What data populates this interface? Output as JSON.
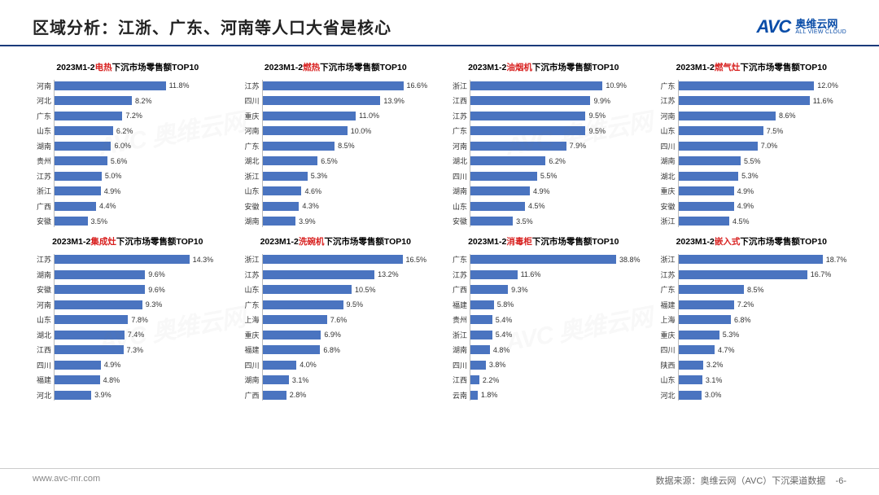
{
  "page_title": "区域分析：江浙、广东、河南等人口大省是核心",
  "logo": {
    "mark": "AVC",
    "cn": "奥维云网",
    "en": "ALL VIEW CLOUD"
  },
  "footer_url": "www.avc-mr.com",
  "footer_source": "数据来源：奥维云网（AVC）下沉渠道数据",
  "footer_page": "-6-",
  "bar_color": "#4a74c0",
  "title_highlight_color": "#d8201f",
  "title_prefix": "2023M1-2",
  "title_suffix": "下沉市场零售额TOP10",
  "charts": [
    {
      "highlight": "电热",
      "max": 18,
      "data": [
        {
          "label": "河南",
          "value": 11.8
        },
        {
          "label": "河北",
          "value": 8.2
        },
        {
          "label": "广东",
          "value": 7.2
        },
        {
          "label": "山东",
          "value": 6.2
        },
        {
          "label": "湖南",
          "value": 6.0
        },
        {
          "label": "贵州",
          "value": 5.6
        },
        {
          "label": "江苏",
          "value": 5.0
        },
        {
          "label": "浙江",
          "value": 4.9
        },
        {
          "label": "广西",
          "value": 4.4
        },
        {
          "label": "安徽",
          "value": 3.5
        }
      ]
    },
    {
      "highlight": "燃热",
      "max": 20,
      "data": [
        {
          "label": "江苏",
          "value": 16.6
        },
        {
          "label": "四川",
          "value": 13.9
        },
        {
          "label": "重庆",
          "value": 11.0
        },
        {
          "label": "河南",
          "value": 10.0
        },
        {
          "label": "广东",
          "value": 8.5
        },
        {
          "label": "湖北",
          "value": 6.5
        },
        {
          "label": "浙江",
          "value": 5.3
        },
        {
          "label": "山东",
          "value": 4.6
        },
        {
          "label": "安徽",
          "value": 4.3
        },
        {
          "label": "湖南",
          "value": 3.9
        }
      ]
    },
    {
      "highlight": "油烟机",
      "max": 14,
      "data": [
        {
          "label": "浙江",
          "value": 10.9
        },
        {
          "label": "江西",
          "value": 9.9
        },
        {
          "label": "江苏",
          "value": 9.5
        },
        {
          "label": "广东",
          "value": 9.5
        },
        {
          "label": "河南",
          "value": 7.9
        },
        {
          "label": "湖北",
          "value": 6.2
        },
        {
          "label": "四川",
          "value": 5.5
        },
        {
          "label": "湖南",
          "value": 4.9
        },
        {
          "label": "山东",
          "value": 4.5
        },
        {
          "label": "安徽",
          "value": 3.5
        }
      ]
    },
    {
      "highlight": "燃气灶",
      "max": 15,
      "data": [
        {
          "label": "广东",
          "value": 12.0
        },
        {
          "label": "江苏",
          "value": 11.6
        },
        {
          "label": "河南",
          "value": 8.6
        },
        {
          "label": "山东",
          "value": 7.5
        },
        {
          "label": "四川",
          "value": 7.0
        },
        {
          "label": "湖南",
          "value": 5.5
        },
        {
          "label": "湖北",
          "value": 5.3
        },
        {
          "label": "重庆",
          "value": 4.9
        },
        {
          "label": "安徽",
          "value": 4.9
        },
        {
          "label": "浙江",
          "value": 4.5
        }
      ]
    },
    {
      "highlight": "集成灶",
      "max": 18,
      "data": [
        {
          "label": "江苏",
          "value": 14.3
        },
        {
          "label": "湖南",
          "value": 9.6
        },
        {
          "label": "安徽",
          "value": 9.6
        },
        {
          "label": "河南",
          "value": 9.3
        },
        {
          "label": "山东",
          "value": 7.8
        },
        {
          "label": "湖北",
          "value": 7.4
        },
        {
          "label": "江西",
          "value": 7.3
        },
        {
          "label": "四川",
          "value": 4.9
        },
        {
          "label": "福建",
          "value": 4.8
        },
        {
          "label": "河北",
          "value": 3.9
        }
      ]
    },
    {
      "highlight": "洗碗机",
      "max": 20,
      "data": [
        {
          "label": "浙江",
          "value": 16.5
        },
        {
          "label": "江苏",
          "value": 13.2
        },
        {
          "label": "山东",
          "value": 10.5
        },
        {
          "label": "广东",
          "value": 9.5
        },
        {
          "label": "上海",
          "value": 7.6
        },
        {
          "label": "重庆",
          "value": 6.9
        },
        {
          "label": "福建",
          "value": 6.8
        },
        {
          "label": "四川",
          "value": 4.0
        },
        {
          "label": "湖南",
          "value": 3.1
        },
        {
          "label": "广西",
          "value": 2.8
        }
      ]
    },
    {
      "highlight": "消毒柜",
      "max": 42,
      "data": [
        {
          "label": "广东",
          "value": 38.8
        },
        {
          "label": "江苏",
          "value": 11.6
        },
        {
          "label": "广西",
          "value": 9.3
        },
        {
          "label": "福建",
          "value": 5.8
        },
        {
          "label": "贵州",
          "value": 5.4
        },
        {
          "label": "浙江",
          "value": 5.4
        },
        {
          "label": "湖南",
          "value": 4.8
        },
        {
          "label": "四川",
          "value": 3.8
        },
        {
          "label": "江西",
          "value": 2.2
        },
        {
          "label": "云南",
          "value": 1.8
        }
      ]
    },
    {
      "highlight": "嵌入式",
      "max": 22,
      "data": [
        {
          "label": "浙江",
          "value": 18.7
        },
        {
          "label": "江苏",
          "value": 16.7
        },
        {
          "label": "广东",
          "value": 8.5
        },
        {
          "label": "福建",
          "value": 7.2
        },
        {
          "label": "上海",
          "value": 6.8
        },
        {
          "label": "重庆",
          "value": 5.3
        },
        {
          "label": "四川",
          "value": 4.7
        },
        {
          "label": "陕西",
          "value": 3.2
        },
        {
          "label": "山东",
          "value": 3.1
        },
        {
          "label": "河北",
          "value": 3.0
        }
      ]
    }
  ]
}
